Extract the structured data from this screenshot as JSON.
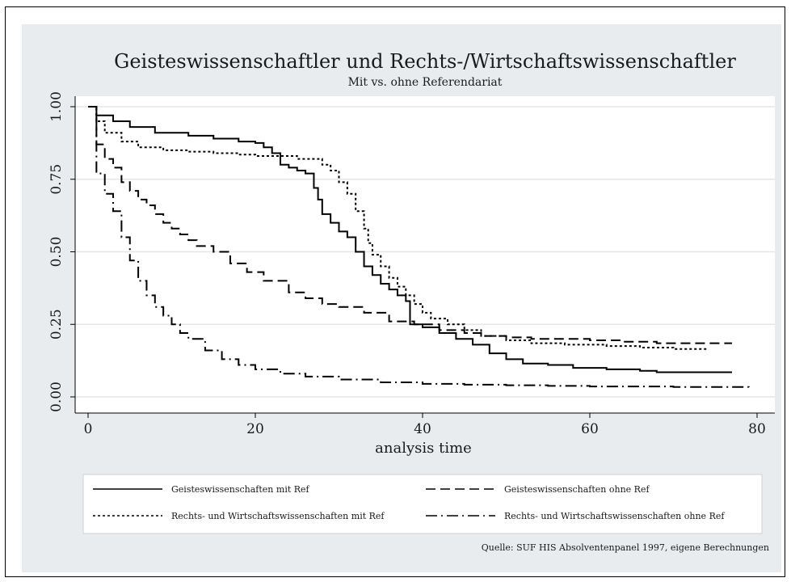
{
  "chart_data": {
    "type": "line",
    "title": "Geisteswissenschaftler und Rechts-/Wirtschaftswissenschaftler",
    "subtitle": "Mit vs. ohne Referendariat",
    "xlabel": "analysis time",
    "ylabel": "",
    "xlim": [
      0,
      80
    ],
    "ylim": [
      0,
      1
    ],
    "x_ticks": [
      "0",
      "20",
      "40",
      "60",
      "80"
    ],
    "y_ticks": [
      "0.00",
      "0.25",
      "0.50",
      "0.75",
      "1.00"
    ],
    "grid": true,
    "legend_position": "bottom",
    "note": "Quelle: SUF HIS Absolventenpanel 1997, eigene Berechnungen",
    "series": [
      {
        "name": "Geisteswissenschaften mit Ref",
        "style": "solid",
        "points": [
          [
            0,
            1.0
          ],
          [
            1,
            0.97
          ],
          [
            3,
            0.95
          ],
          [
            5,
            0.93
          ],
          [
            8,
            0.91
          ],
          [
            12,
            0.9
          ],
          [
            15,
            0.89
          ],
          [
            18,
            0.88
          ],
          [
            20,
            0.875
          ],
          [
            21,
            0.86
          ],
          [
            22,
            0.84
          ],
          [
            23,
            0.8
          ],
          [
            24,
            0.79
          ],
          [
            25,
            0.78
          ],
          [
            26,
            0.77
          ],
          [
            27,
            0.72
          ],
          [
            27.5,
            0.68
          ],
          [
            28,
            0.63
          ],
          [
            29,
            0.6
          ],
          [
            30,
            0.57
          ],
          [
            31,
            0.55
          ],
          [
            32,
            0.5
          ],
          [
            33,
            0.45
          ],
          [
            34,
            0.42
          ],
          [
            35,
            0.39
          ],
          [
            36,
            0.37
          ],
          [
            37,
            0.35
          ],
          [
            38,
            0.33
          ],
          [
            38.5,
            0.25
          ],
          [
            40,
            0.24
          ],
          [
            42,
            0.22
          ],
          [
            44,
            0.2
          ],
          [
            46,
            0.18
          ],
          [
            48,
            0.15
          ],
          [
            50,
            0.13
          ],
          [
            52,
            0.115
          ],
          [
            55,
            0.11
          ],
          [
            58,
            0.1
          ],
          [
            62,
            0.095
          ],
          [
            66,
            0.09
          ],
          [
            68,
            0.085
          ],
          [
            72,
            0.085
          ],
          [
            77,
            0.085
          ]
        ]
      },
      {
        "name": "Geisteswissenschaften ohne Ref",
        "style": "dash",
        "points": [
          [
            0,
            1.0
          ],
          [
            1,
            0.87
          ],
          [
            2,
            0.82
          ],
          [
            3,
            0.79
          ],
          [
            4,
            0.74
          ],
          [
            5,
            0.71
          ],
          [
            6,
            0.68
          ],
          [
            7,
            0.66
          ],
          [
            8,
            0.63
          ],
          [
            9,
            0.6
          ],
          [
            10,
            0.58
          ],
          [
            11,
            0.56
          ],
          [
            12,
            0.54
          ],
          [
            13,
            0.52
          ],
          [
            15,
            0.5
          ],
          [
            17,
            0.46
          ],
          [
            19,
            0.43
          ],
          [
            21,
            0.4
          ],
          [
            24,
            0.36
          ],
          [
            26,
            0.34
          ],
          [
            28,
            0.32
          ],
          [
            30,
            0.31
          ],
          [
            33,
            0.29
          ],
          [
            36,
            0.26
          ],
          [
            39,
            0.25
          ],
          [
            42,
            0.23
          ],
          [
            45,
            0.22
          ],
          [
            47,
            0.21
          ],
          [
            50,
            0.205
          ],
          [
            53,
            0.2
          ],
          [
            56,
            0.2
          ],
          [
            60,
            0.195
          ],
          [
            64,
            0.19
          ],
          [
            68,
            0.185
          ],
          [
            72,
            0.185
          ],
          [
            77,
            0.185
          ]
        ]
      },
      {
        "name": "Rechts- und Wirtschaftswissenschaften mit Ref",
        "style": "dot",
        "points": [
          [
            0,
            1.0
          ],
          [
            1,
            0.95
          ],
          [
            2,
            0.91
          ],
          [
            4,
            0.88
          ],
          [
            6,
            0.86
          ],
          [
            9,
            0.85
          ],
          [
            12,
            0.845
          ],
          [
            15,
            0.84
          ],
          [
            18,
            0.835
          ],
          [
            20,
            0.83
          ],
          [
            24,
            0.83
          ],
          [
            25,
            0.82
          ],
          [
            26,
            0.82
          ],
          [
            28,
            0.8
          ],
          [
            29,
            0.78
          ],
          [
            30,
            0.74
          ],
          [
            31,
            0.7
          ],
          [
            32,
            0.64
          ],
          [
            33,
            0.58
          ],
          [
            33.5,
            0.53
          ],
          [
            34,
            0.49
          ],
          [
            35,
            0.45
          ],
          [
            36,
            0.41
          ],
          [
            37,
            0.38
          ],
          [
            38,
            0.35
          ],
          [
            39,
            0.32
          ],
          [
            40,
            0.29
          ],
          [
            41,
            0.27
          ],
          [
            43,
            0.25
          ],
          [
            45,
            0.23
          ],
          [
            47,
            0.21
          ],
          [
            50,
            0.195
          ],
          [
            53,
            0.185
          ],
          [
            57,
            0.18
          ],
          [
            62,
            0.175
          ],
          [
            66,
            0.17
          ],
          [
            70,
            0.165
          ],
          [
            74,
            0.165
          ]
        ]
      },
      {
        "name": "Rechts- und Wirtschaftswissenschaften ohne Ref",
        "style": "dashdot",
        "points": [
          [
            0,
            1.0
          ],
          [
            1,
            0.77
          ],
          [
            2,
            0.7
          ],
          [
            3,
            0.64
          ],
          [
            4,
            0.55
          ],
          [
            5,
            0.47
          ],
          [
            6,
            0.4
          ],
          [
            7,
            0.35
          ],
          [
            8,
            0.31
          ],
          [
            9,
            0.28
          ],
          [
            10,
            0.25
          ],
          [
            11,
            0.22
          ],
          [
            12,
            0.2
          ],
          [
            14,
            0.16
          ],
          [
            16,
            0.13
          ],
          [
            18,
            0.11
          ],
          [
            20,
            0.095
          ],
          [
            23,
            0.08
          ],
          [
            26,
            0.07
          ],
          [
            30,
            0.06
          ],
          [
            35,
            0.05
          ],
          [
            40,
            0.045
          ],
          [
            45,
            0.042
          ],
          [
            50,
            0.04
          ],
          [
            55,
            0.038
          ],
          [
            60,
            0.036
          ],
          [
            70,
            0.034
          ],
          [
            79,
            0.033
          ]
        ]
      }
    ]
  }
}
